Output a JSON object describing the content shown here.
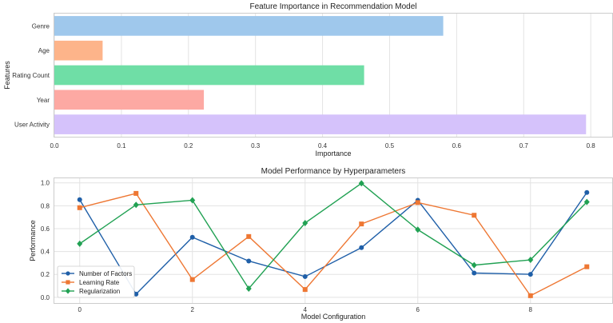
{
  "chart_data": [
    {
      "type": "bar",
      "orientation": "horizontal",
      "title": "Feature Importance in Recommendation Model",
      "xlabel": "Importance",
      "ylabel": "Features",
      "categories": [
        "Genre",
        "Age",
        "Rating Count",
        "Year",
        "User Activity"
      ],
      "values": [
        0.58,
        0.072,
        0.462,
        0.223,
        0.793
      ],
      "colors": [
        "#9fc8ec",
        "#fdb48a",
        "#6fdea6",
        "#fda9a3",
        "#d5c2fb"
      ],
      "xlim": [
        0,
        0.832
      ],
      "xticks": [
        "0.0",
        "0.1",
        "0.2",
        "0.3",
        "0.4",
        "0.5",
        "0.6",
        "0.7",
        "0.8"
      ],
      "grid": true
    },
    {
      "type": "line",
      "title": "Model Performance by Hyperparameters",
      "xlabel": "Model Configuration",
      "ylabel": "Performance",
      "x": [
        0,
        1,
        2,
        3,
        4,
        5,
        6,
        7,
        8,
        9
      ],
      "xlim": [
        -0.45,
        9.45
      ],
      "ylim": [
        -0.05,
        1.04
      ],
      "xticks": [
        "0",
        "2",
        "4",
        "6",
        "8"
      ],
      "yticks": [
        "0.0",
        "0.2",
        "0.4",
        "0.6",
        "0.8",
        "1.0"
      ],
      "grid": true,
      "legend_position": "lower-left",
      "series": [
        {
          "name": "Number of Factors",
          "color": "#1f5fa8",
          "marker": "circle",
          "values": [
            0.853,
            0.028,
            0.525,
            0.317,
            0.181,
            0.434,
            0.848,
            0.212,
            0.201,
            0.916
          ]
        },
        {
          "name": "Learning Rate",
          "color": "#ee7733",
          "marker": "square",
          "values": [
            0.783,
            0.908,
            0.155,
            0.531,
            0.068,
            0.641,
            0.828,
            0.717,
            0.014,
            0.267
          ]
        },
        {
          "name": "Regularization",
          "color": "#21a153",
          "marker": "diamond",
          "values": [
            0.468,
            0.808,
            0.848,
            0.076,
            0.649,
            0.996,
            0.591,
            0.281,
            0.327,
            0.833
          ]
        }
      ]
    }
  ]
}
